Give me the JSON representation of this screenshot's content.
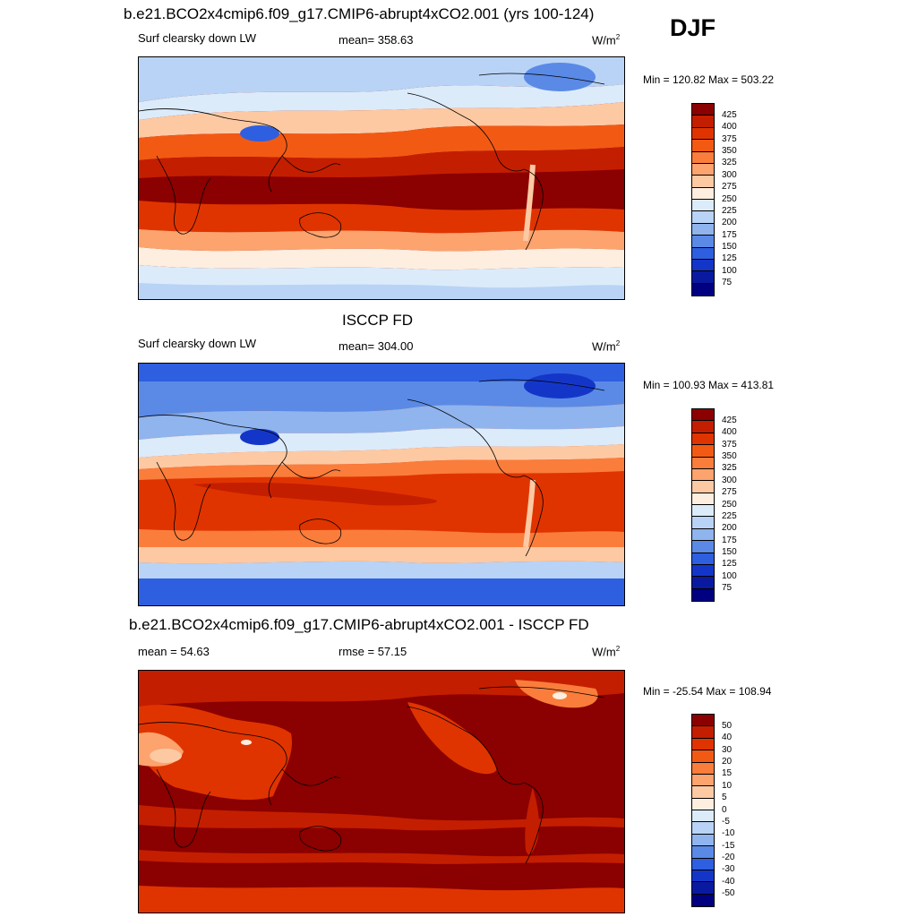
{
  "season": "DJF",
  "panels": [
    {
      "title": "b.e21.BCO2x4cmip6.f09_g17.CMIP6-abrupt4xCO2.001 (yrs 100-124)",
      "left_label": "Surf clearsky down LW",
      "center_label": "mean= 358.63",
      "units": "W/m",
      "units_sup": "2",
      "minmax": "Min = 120.82 Max = 503.22",
      "levels": [
        "425",
        "400",
        "375",
        "350",
        "325",
        "300",
        "275",
        "250",
        "225",
        "200",
        "175",
        "150",
        "125",
        "100",
        "75"
      ],
      "colors": [
        "#8b0000",
        "#c41e00",
        "#e03400",
        "#f25a14",
        "#fa7d3c",
        "#fca36e",
        "#fdc9a3",
        "#fdeee0",
        "#dcebfa",
        "#b8d3f5",
        "#8fb4ee",
        "#5a8ae6",
        "#2e5fe0",
        "#1436c8",
        "#0a1aa0",
        "#000080"
      ],
      "mean_value": 358.63
    },
    {
      "title": "ISCCP FD",
      "left_label": "Surf clearsky down LW",
      "center_label": "mean= 304.00",
      "units": "W/m",
      "units_sup": "2",
      "minmax": "Min = 100.93 Max = 413.81",
      "levels": [
        "425",
        "400",
        "375",
        "350",
        "325",
        "300",
        "275",
        "250",
        "225",
        "200",
        "175",
        "150",
        "125",
        "100",
        "75"
      ],
      "colors": [
        "#8b0000",
        "#c41e00",
        "#e03400",
        "#f25a14",
        "#fa7d3c",
        "#fca36e",
        "#fdc9a3",
        "#fdeee0",
        "#dcebfa",
        "#b8d3f5",
        "#8fb4ee",
        "#5a8ae6",
        "#2e5fe0",
        "#1436c8",
        "#0a1aa0",
        "#000080"
      ],
      "mean_value": 304.0
    },
    {
      "title": "b.e21.BCO2x4cmip6.f09_g17.CMIP6-abrupt4xCO2.001 - ISCCP FD",
      "left_label": "mean =  54.63",
      "center_label": "rmse =  57.15",
      "units": "W/m",
      "units_sup": "2",
      "minmax": "Min = -25.54 Max = 108.94",
      "levels": [
        "50",
        "40",
        "30",
        "20",
        "15",
        "10",
        "5",
        "0",
        "-5",
        "-10",
        "-15",
        "-20",
        "-30",
        "-40",
        "-50"
      ],
      "colors": [
        "#8b0000",
        "#c41e00",
        "#e03400",
        "#f25a14",
        "#fa7d3c",
        "#fca36e",
        "#fdc9a3",
        "#fdeee0",
        "#dcebfa",
        "#b8d3f5",
        "#8fb4ee",
        "#5a8ae6",
        "#2e5fe0",
        "#1436c8",
        "#0a1aa0",
        "#000080"
      ],
      "mean_value": 54.63
    }
  ]
}
